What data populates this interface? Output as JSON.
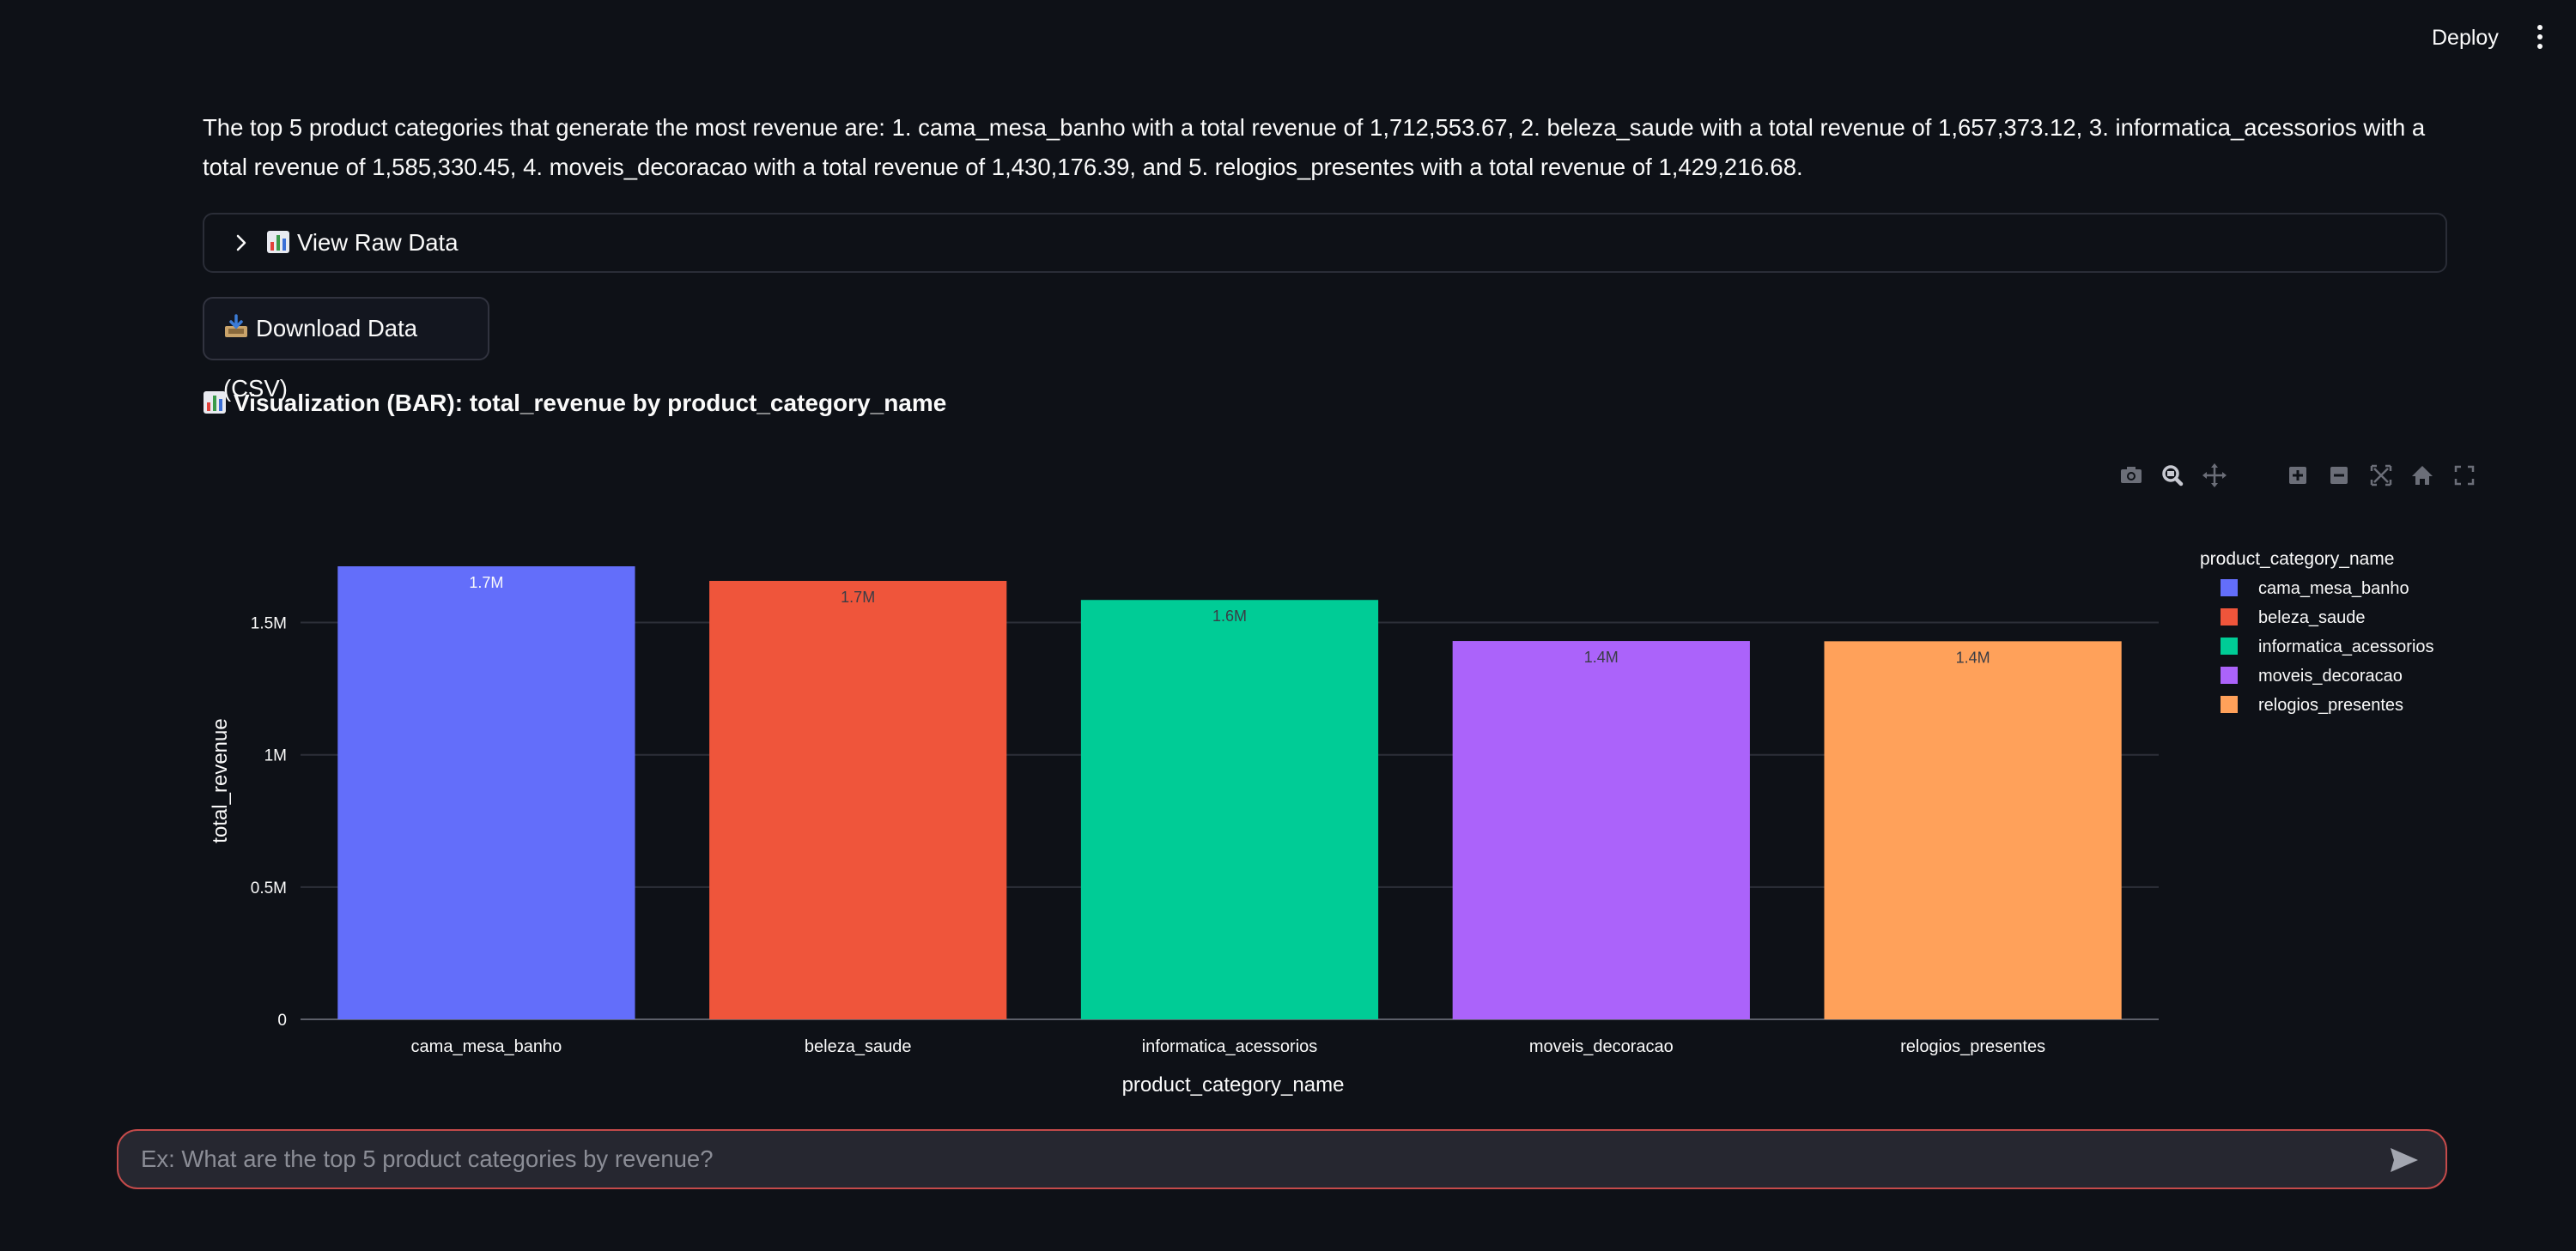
{
  "header": {
    "deploy_label": "Deploy"
  },
  "answer_text": "The top 5 product categories that generate the most revenue are: 1. cama_mesa_banho with a total revenue of 1,712,553.67, 2. beleza_saude with a total revenue of 1,657,373.12, 3. informatica_acessorios with a total revenue of 1,585,330.45, 4. moveis_decoracao with a total revenue of 1,430,176.39, and 5. relogios_presentes with a total revenue of 1,429,216.68.",
  "expander": {
    "label": "View Raw Data",
    "icon": "bar-chart-icon"
  },
  "download": {
    "label": "Download Data (CSV)",
    "icon": "inbox-tray-icon"
  },
  "viz_heading": "Visualization (BAR): total_revenue by product_category_name",
  "modebar": [
    "camera-icon",
    "zoom-icon",
    "pan-icon",
    "zoom-in-icon",
    "zoom-out-icon",
    "autoscale-icon",
    "home-icon",
    "fullscreen-icon"
  ],
  "chart_data": {
    "type": "bar",
    "categories": [
      "cama_mesa_banho",
      "beleza_saude",
      "informatica_acessorios",
      "moveis_decoracao",
      "relogios_presentes"
    ],
    "values": [
      1712553.67,
      1657373.12,
      1585330.45,
      1430176.39,
      1429216.68
    ],
    "data_labels": [
      "1.7M",
      "1.7M",
      "1.6M",
      "1.4M",
      "1.4M"
    ],
    "colors": [
      "#636efa",
      "#ef553b",
      "#00cc96",
      "#ab63fa",
      "#ffa15a"
    ],
    "xlabel": "product_category_name",
    "ylabel": "total_revenue",
    "ylim": [
      0,
      1712553.67
    ],
    "yticks": [
      0,
      500000,
      1000000,
      1500000
    ],
    "ytick_labels": [
      "0",
      "0.5M",
      "1M",
      "1.5M"
    ],
    "grid": true,
    "legend_title": "product_category_name",
    "legend_position": "top-right"
  },
  "chat": {
    "placeholder": "Ex: What are the top 5 product categories by revenue?"
  }
}
